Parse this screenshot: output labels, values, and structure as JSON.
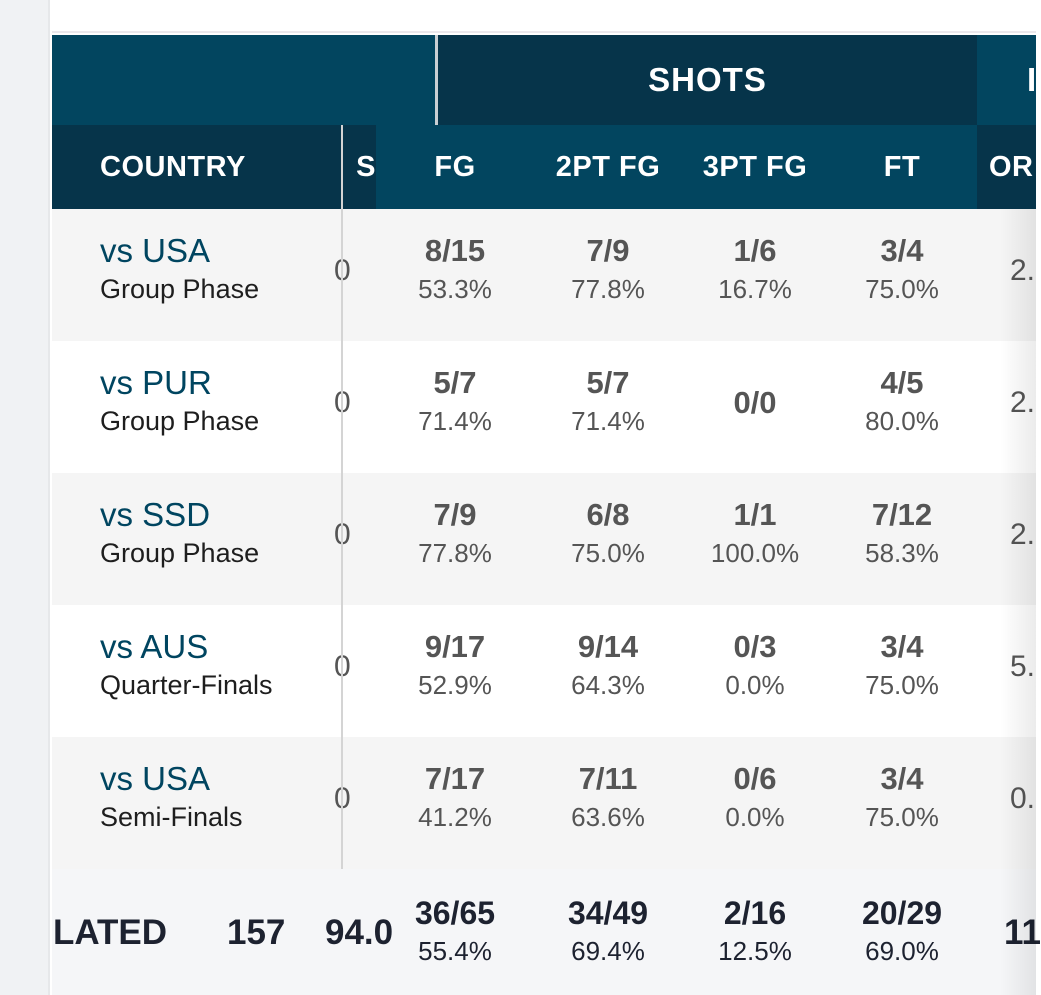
{
  "header": {
    "group_label": "SHOTS",
    "next_group_partial": "I",
    "columns": [
      "COUNTRY",
      "S",
      "FG",
      "2PT FG",
      "3PT FG",
      "FT",
      "OR"
    ]
  },
  "rows": [
    {
      "opponent": "vs USA",
      "phase": "Group Phase",
      "partial_left": "0",
      "fg": {
        "m": "8/15",
        "p": "53.3%"
      },
      "fg2": {
        "m": "7/9",
        "p": "77.8%"
      },
      "fg3": {
        "m": "1/6",
        "p": "16.7%"
      },
      "ft": {
        "m": "3/4",
        "p": "75.0%"
      },
      "partial_right": "2."
    },
    {
      "opponent": "vs PUR",
      "phase": "Group Phase",
      "partial_left": "0",
      "fg": {
        "m": "5/7",
        "p": "71.4%"
      },
      "fg2": {
        "m": "5/7",
        "p": "71.4%"
      },
      "fg3": {
        "m": "0/0",
        "p": ""
      },
      "ft": {
        "m": "4/5",
        "p": "80.0%"
      },
      "partial_right": "2."
    },
    {
      "opponent": "vs SSD",
      "phase": "Group Phase",
      "partial_left": "0",
      "fg": {
        "m": "7/9",
        "p": "77.8%"
      },
      "fg2": {
        "m": "6/8",
        "p": "75.0%"
      },
      "fg3": {
        "m": "1/1",
        "p": "100.0%"
      },
      "ft": {
        "m": "7/12",
        "p": "58.3%"
      },
      "partial_right": "2."
    },
    {
      "opponent": "vs AUS",
      "phase": "Quarter-Finals",
      "partial_left": "0",
      "fg": {
        "m": "9/17",
        "p": "52.9%"
      },
      "fg2": {
        "m": "9/14",
        "p": "64.3%"
      },
      "fg3": {
        "m": "0/3",
        "p": "0.0%"
      },
      "ft": {
        "m": "3/4",
        "p": "75.0%"
      },
      "partial_right": "5."
    },
    {
      "opponent": "vs USA",
      "phase": "Semi-Finals",
      "partial_left": "0",
      "fg": {
        "m": "7/17",
        "p": "41.2%"
      },
      "fg2": {
        "m": "7/11",
        "p": "63.6%"
      },
      "fg3": {
        "m": "0/6",
        "p": "0.0%"
      },
      "ft": {
        "m": "3/4",
        "p": "75.0%"
      },
      "partial_right": "0."
    }
  ],
  "footer": {
    "label": "LATED",
    "v1": "157",
    "v2": "94.0",
    "fg": {
      "m": "36/65",
      "p": "55.4%"
    },
    "fg2": {
      "m": "34/49",
      "p": "69.4%"
    },
    "fg3": {
      "m": "2/16",
      "p": "12.5%"
    },
    "ft": {
      "m": "20/29",
      "p": "69.0%"
    },
    "partial_right": "11"
  },
  "colors": {
    "header_dark": "#06344a",
    "header_mid": "#02455f",
    "link": "#004560"
  }
}
